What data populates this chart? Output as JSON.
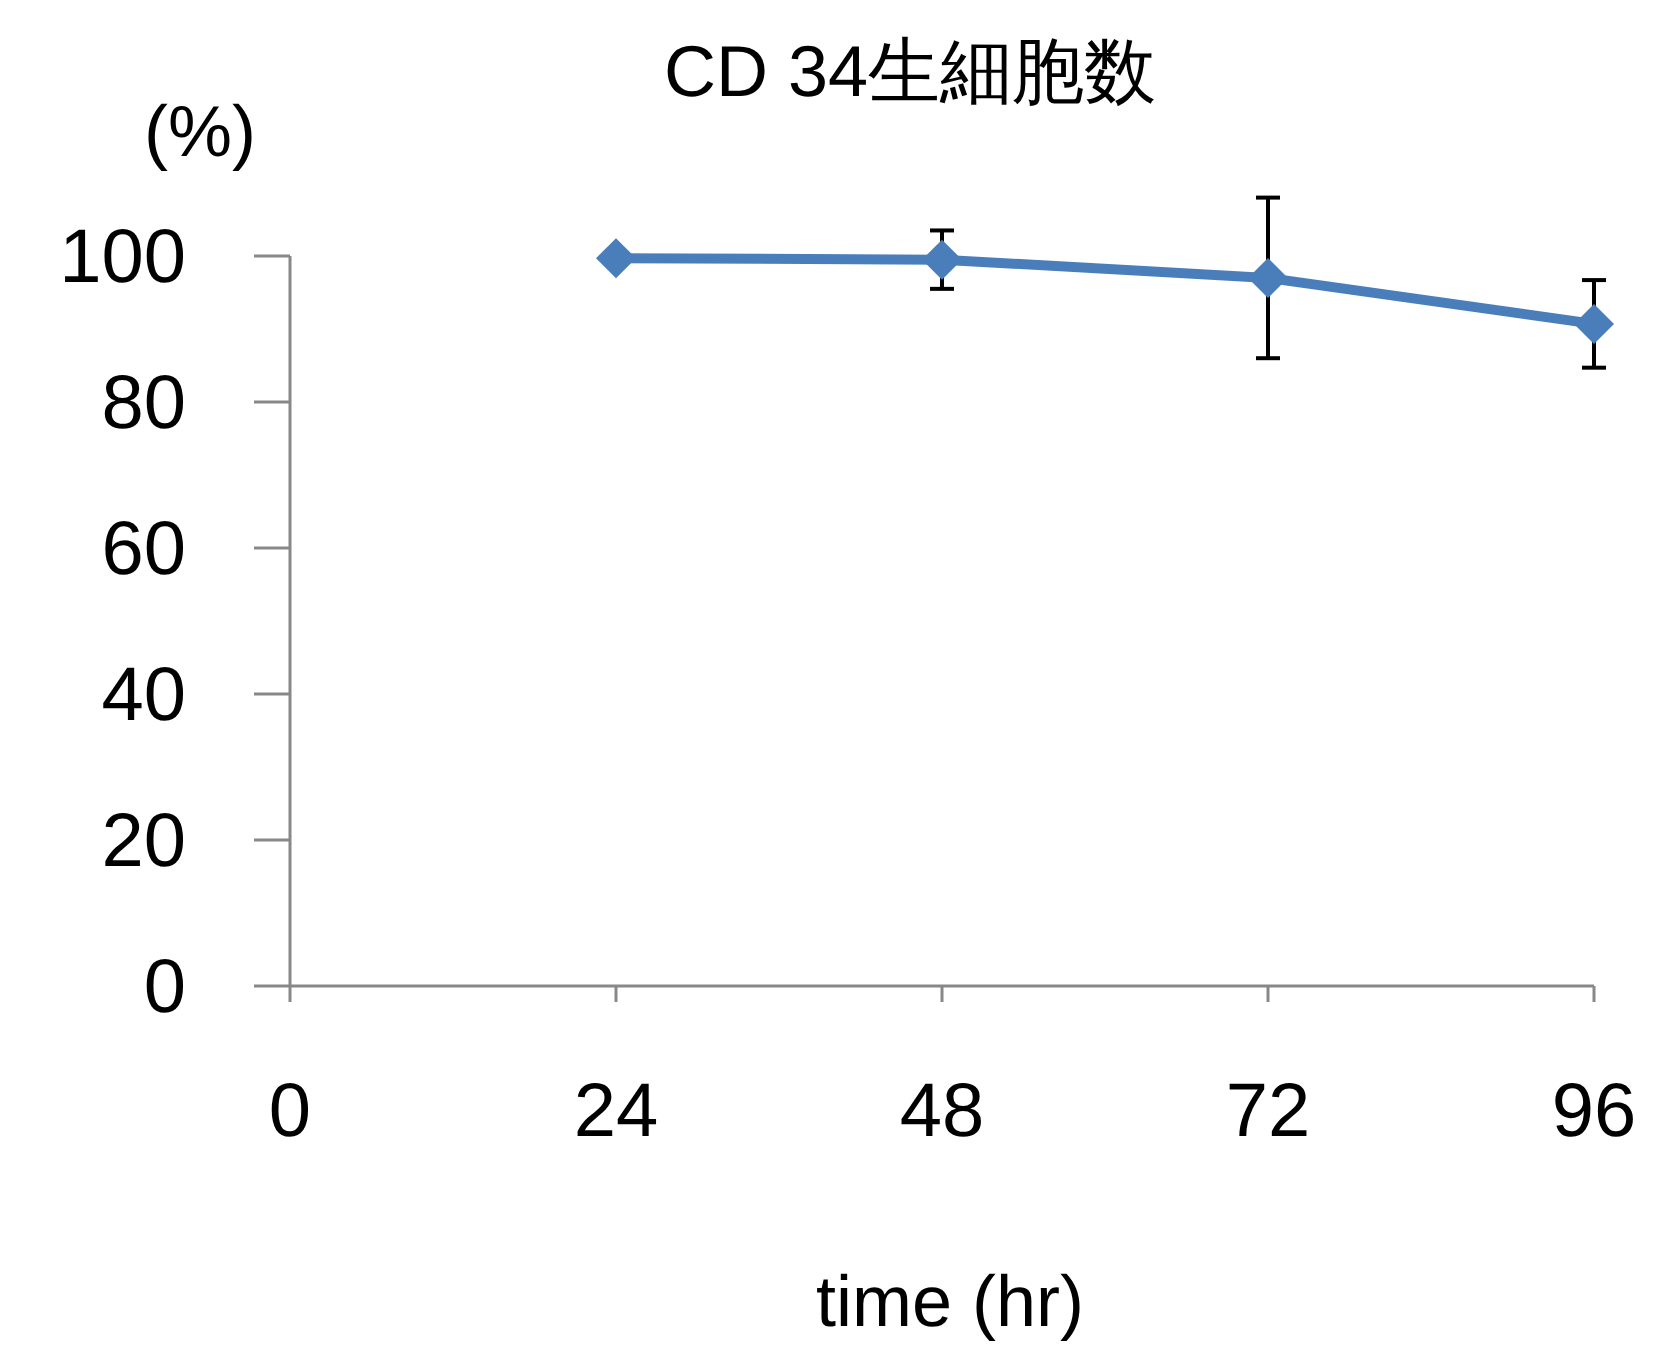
{
  "chart_data": {
    "type": "line",
    "title": "CD 34生細胞数",
    "xlabel": "time (hr)",
    "ylabel": "(%)",
    "x": [
      24,
      48,
      72,
      96
    ],
    "series": [
      {
        "color": "#4a7ebb",
        "values": [
          99.7,
          99.5,
          97,
          90.7
        ],
        "errors": [
          null,
          4,
          11,
          6
        ]
      }
    ],
    "xlim": [
      0,
      96
    ],
    "xticks": [
      0,
      24,
      48,
      72,
      96
    ],
    "ylim": [
      0,
      100
    ],
    "yticks": [
      0,
      20,
      40,
      60,
      80,
      100
    ],
    "grid": false,
    "marker": "diamond",
    "line_style": "solid"
  }
}
